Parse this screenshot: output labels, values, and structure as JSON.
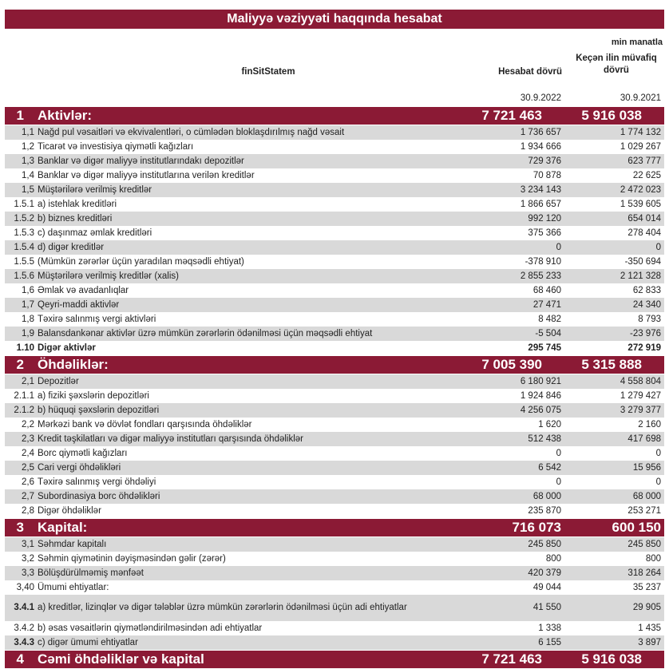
{
  "title": "Maliyyə vəziyyəti haqqında hesabat",
  "unit": "min manatla",
  "header": {
    "col0": "finSitStatem",
    "col1": "Hesabat dövrü",
    "col2": "Keçən ilin müvafiq dövrü",
    "date1": "30.9.2022",
    "date2": "30.9.2021"
  },
  "colors": {
    "accent": "#8b1a35",
    "stripe": "#d9d9d9"
  },
  "rows": [
    {
      "type": "section",
      "num": "1",
      "label": "Aktivlər:",
      "v1": "7 721 463",
      "v2": "5 916 038"
    },
    {
      "num": "1,1",
      "label": "Nağd pul vəsaitləri və  ekvivalentləri, o cümlədən bloklaşdırılmış nağd vəsait",
      "v1": "1 736 657",
      "v2": "1 774 132"
    },
    {
      "num": "1,2",
      "label": "Ticarət və investisiya qiymətli kağızları",
      "v1": "1 934 666",
      "v2": "1 029 267"
    },
    {
      "num": "1,3",
      "label": "Banklar və digər maliyyə institutlarındakı depozitlər",
      "v1": "729 376",
      "v2": "623 777"
    },
    {
      "num": "1,4",
      "label": "Banklar və digər maliyyə institutlarına verilən kreditlər",
      "v1": "70 878",
      "v2": "22 625"
    },
    {
      "num": "1,5",
      "label": "Müştərilərə verilmiş kreditlər",
      "v1": "3 234 143",
      "v2": "2 472 023"
    },
    {
      "num": "1.5.1",
      "label": "a) istehlak kreditləri",
      "v1": "1 866 657",
      "v2": "1 539 605"
    },
    {
      "num": "1.5.2",
      "label": "b) biznes kreditləri",
      "v1": "992 120",
      "v2": "654 014"
    },
    {
      "num": "1.5.3",
      "label": "c) daşınmaz əmlak kreditləri",
      "v1": "375 366",
      "v2": "278 404"
    },
    {
      "num": "1.5.4",
      "label": "d) digər kreditlər",
      "v1": "0",
      "v2": "0"
    },
    {
      "num": "1.5.5",
      "label": "(Mümkün zərərlər üçün yaradılan məqsədli ehtiyat)",
      "v1": "-378 910",
      "v2": "-350 694"
    },
    {
      "num": "1.5.6",
      "label": "Müştərilərə verilmiş kreditlər (xalis)",
      "v1": "2 855 233",
      "v2": "2 121 328"
    },
    {
      "num": "1,6",
      "label": "Əmlak və avadanlıqlar",
      "v1": "68 460",
      "v2": "62 833"
    },
    {
      "num": "1,7",
      "label": "Qeyri-maddi aktivlər",
      "v1": "27 471",
      "v2": "24 340"
    },
    {
      "num": "1,8",
      "label": "Təxirə salınmış vergi aktivləri",
      "v1": "8 482",
      "v2": "8 793"
    },
    {
      "num": "1,9",
      "label": "Balansdankənar aktivlər üzrə mümkün zərərlərin ödənilməsi üçün məqsədli ehtiyat",
      "v1": "-5 504",
      "v2": "-23 976"
    },
    {
      "num": "1.10",
      "label": "Digər aktivlər",
      "v1": "295 745",
      "v2": "272 919",
      "bold": true
    },
    {
      "type": "section",
      "num": "2",
      "label": "Öhdəliklər:",
      "v1": "7 005 390",
      "v2": "5 315 888"
    },
    {
      "num": "2,1",
      "label": "Depozitlər",
      "v1": "6 180 921",
      "v2": "4 558 804"
    },
    {
      "num": "2.1.1",
      "label": "a) fiziki şəxslərin depozitləri",
      "v1": "1 924 846",
      "v2": "1 279 427"
    },
    {
      "num": "2.1.2",
      "label": "b) hüquqi şəxslərin depozitləri",
      "v1": "4 256 075",
      "v2": "3 279 377"
    },
    {
      "num": "2,2",
      "label": "Mərkəzi bank və dövlət fondları qarşısında öhdəliklər",
      "v1": "1 620",
      "v2": "2 160"
    },
    {
      "num": "2,3",
      "label": "Kredit təşkilatları və digər maliyyə institutları qarşısında öhdəliklər",
      "v1": "512 438",
      "v2": "417 698"
    },
    {
      "num": "2,4",
      "label": "Borc qiymətli kağızları",
      "v1": "0",
      "v2": "0"
    },
    {
      "num": "2,5",
      "label": "Cari vergi öhdəlikləri",
      "v1": "6 542",
      "v2": "15 956"
    },
    {
      "num": "2,6",
      "label": "Təxirə salınmış vergi öhdəliyi",
      "v1": "0",
      "v2": "0"
    },
    {
      "num": "2,7",
      "label": "Subordinasiya borc öhdəlikləri",
      "v1": "68 000",
      "v2": "68 000"
    },
    {
      "num": "2,8",
      "label": "Digər öhdəliklər",
      "v1": "235 870",
      "v2": "253 271"
    },
    {
      "type": "section",
      "num": "3",
      "label": "Kapital:",
      "v1": "716 073",
      "v2": "600 150",
      "right": true
    },
    {
      "num": "3,1",
      "label": "Səhmdar kapitalı",
      "v1": "245 850",
      "v2": "245 850"
    },
    {
      "num": "3,2",
      "label": "Səhmin qiymətinin dəyişməsindən gəlir (zərər)",
      "v1": "800",
      "v2": "800"
    },
    {
      "num": "3,3",
      "label": "Bölüşdürülməmiş mənfəət",
      "v1": "420 379",
      "v2": "318 264"
    },
    {
      "num": "3,40",
      "label": "Ümumi ehtiyatlar:",
      "v1": "49 044",
      "v2": "35 237"
    },
    {
      "num": "3.4.1",
      "label": "a) kreditlər, lizinqlər və digər tələblər üzrə mümkün zərərlərin ödənilməsi üçün adi ehtiyatlar",
      "v1": "41 550",
      "v2": "29 905",
      "tall": true,
      "boldNum": true
    },
    {
      "num": "3.4.2",
      "label": "b) əsas vəsaitlərin qiymətləndirilməsindən adi ehtiyatlar",
      "v1": "1 338",
      "v2": "1 435"
    },
    {
      "num": "3.4.3",
      "label": "c) digər ümumi ehtiyatlar",
      "v1": "6 155",
      "v2": "3 897",
      "boldNum": true
    },
    {
      "type": "section",
      "num": "4",
      "label": "Cəmi öhdəliklər və kapital",
      "v1": "7 721 463",
      "v2": "5 916 038"
    }
  ]
}
